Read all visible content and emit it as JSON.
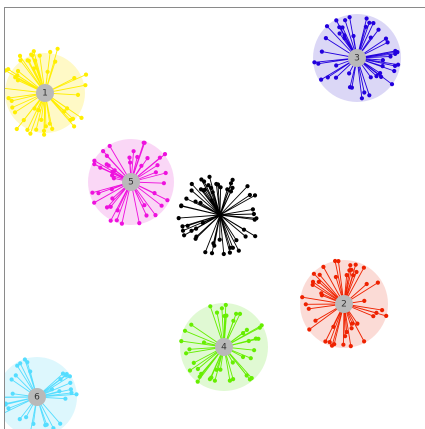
{
  "graph": {
    "clusters": [
      {
        "label": "1",
        "color": "#ffee00",
        "halo": "#fff7b3",
        "edge_count": 48,
        "spread": 46
      },
      {
        "label": "2",
        "color": "#ee2200",
        "halo": "#f9cfc8",
        "edge_count": 44,
        "spread": 44
      },
      {
        "label": "3",
        "color": "#2200dd",
        "halo": "#cfc9f3",
        "edge_count": 46,
        "spread": 44
      },
      {
        "label": "4",
        "color": "#66ee00",
        "halo": "#d6f7c4",
        "edge_count": 42,
        "spread": 44
      },
      {
        "label": "5",
        "color": "#ee11dd",
        "halo": "#f8c9f3",
        "edge_count": 44,
        "spread": 44
      },
      {
        "label": "6",
        "color": "#55ddff",
        "halo": "#d2f4fc",
        "edge_count": 34,
        "spread": 40
      }
    ],
    "center_cluster": {
      "color": "#000000",
      "edge_count": 56,
      "spread": 42
    }
  }
}
